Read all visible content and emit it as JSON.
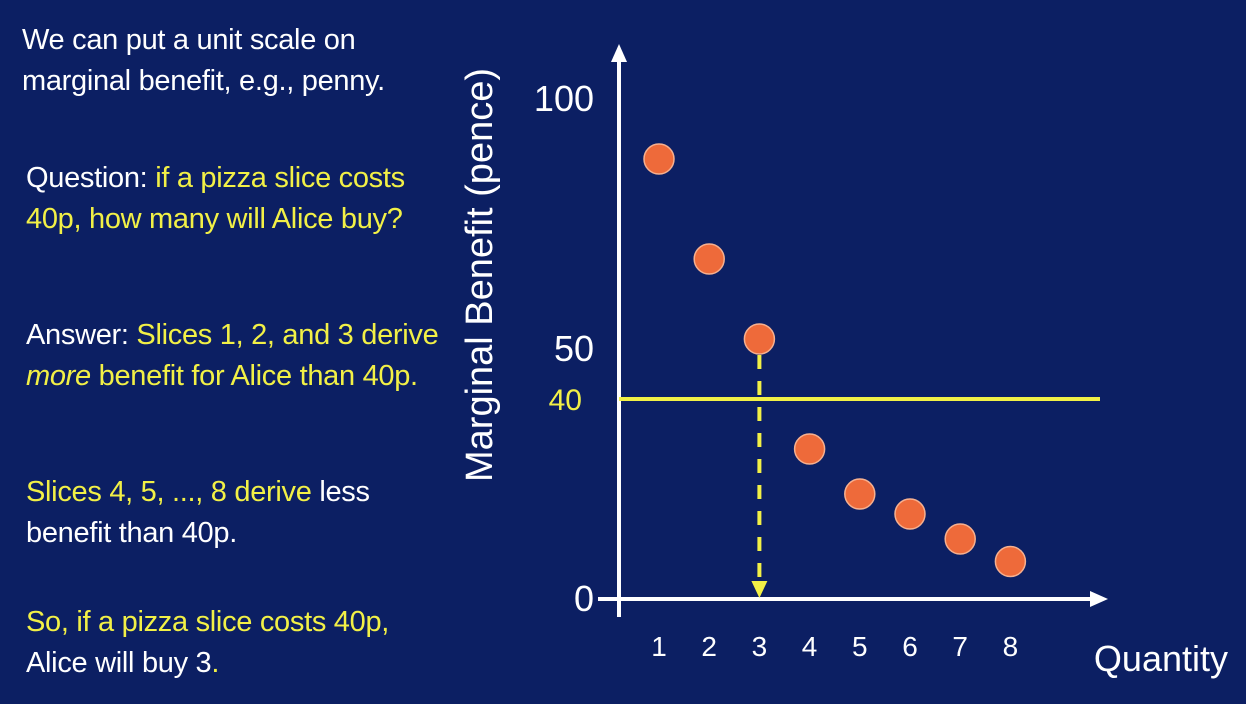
{
  "left_panel": {
    "p1": "We can put a unit scale on marginal benefit, e.g., penny.",
    "p2_lead": "Question: ",
    "p2_body": "if a pizza slice costs 40p, how many will Alice buy?",
    "p3_lead": "Answer: ",
    "p3_body_a": "Slices 1, 2, and 3 derive ",
    "p3_italic": "more",
    "p3_body_b": " benefit for Alice than 40p.",
    "p4_yellow": "Slices 4, 5, ..., 8 derive ",
    "p4_white": "less benefit than 40p.",
    "p5_yellow_a": "So, if a pizza slice costs 40p, ",
    "p5_white": "Alice will buy 3",
    "p5_yellow_b": "."
  },
  "colors": {
    "background": "#0c1f63",
    "text_white": "#ffffff",
    "text_yellow": "#f2f046",
    "dot": "#ee6a3a",
    "price_line": "#f2f046"
  },
  "chart_data": {
    "type": "scatter",
    "xlabel": "Quantity",
    "ylabel": "Marginal Benefit  (pence)",
    "x": [
      1,
      2,
      3,
      4,
      5,
      6,
      7,
      8
    ],
    "y": [
      88,
      68,
      52,
      30,
      21,
      17,
      12,
      7.5
    ],
    "xlim": [
      0,
      9
    ],
    "ylim": [
      0,
      100
    ],
    "x_ticks": [
      "1",
      "2",
      "3",
      "4",
      "5",
      "6",
      "7",
      "8"
    ],
    "y_ticks": [
      {
        "value": 0,
        "label": "0"
      },
      {
        "value": 50,
        "label": "50"
      },
      {
        "value": 100,
        "label": "100"
      }
    ],
    "price_line": {
      "value": 40,
      "label": "40"
    },
    "drop_line_x": 3,
    "grid": false
  }
}
